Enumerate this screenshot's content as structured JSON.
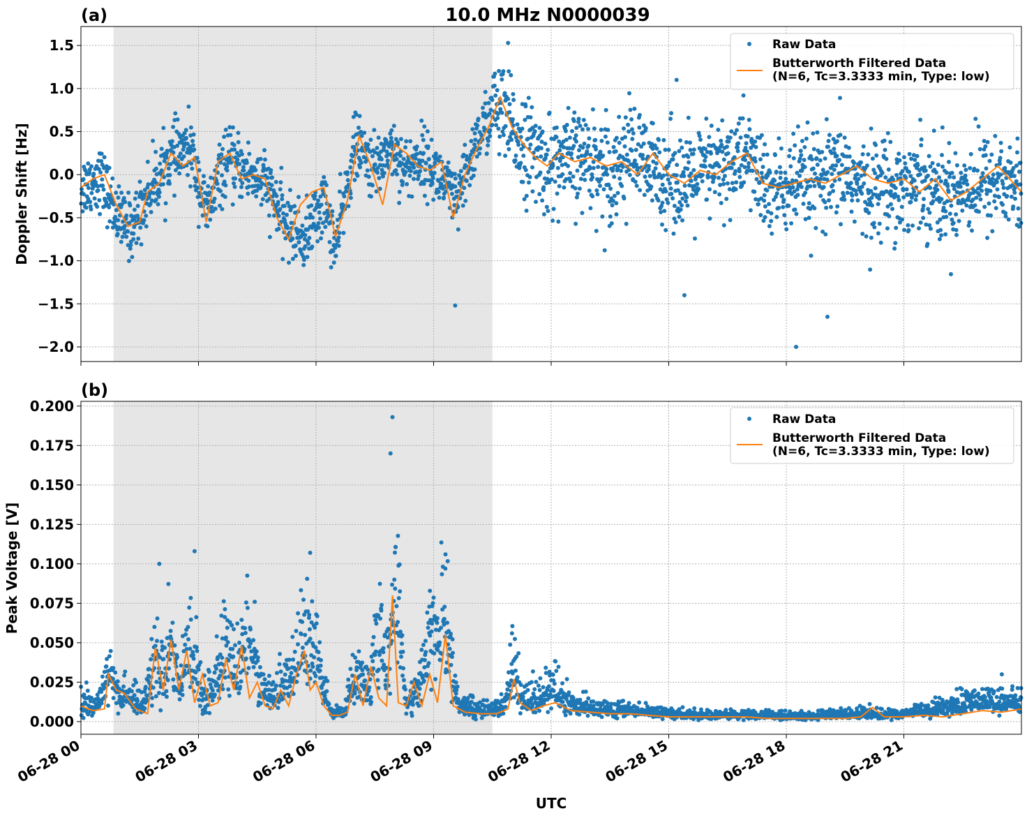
{
  "figure": {
    "title": "10.0 MHz N0000039"
  },
  "chart_data": [
    {
      "type": "scatter",
      "panel_label": "(a)",
      "title": "10.0 MHz N0000039",
      "ylabel": "Doppler Shift [Hz]",
      "xlabel": "",
      "xlim": [
        0,
        24
      ],
      "ylim": [
        -2.17,
        1.72
      ],
      "yticks": [
        1.5,
        1.0,
        0.5,
        0.0,
        -0.5,
        -1.0,
        -1.5,
        -2.0
      ],
      "ytick_labels": [
        "1.5",
        "1.0",
        "0.5",
        "0.0",
        "−0.5",
        "−1.0",
        "−1.5",
        "−2.0"
      ],
      "xticks": [
        0,
        3,
        6,
        9,
        12,
        15,
        18,
        21
      ],
      "shaded_region": [
        0.83,
        10.5
      ],
      "grid": true,
      "legend_position": "top-right",
      "series": [
        {
          "name": "Raw Data",
          "kind": "points",
          "color": "#1f77b4",
          "x": [
            0.0,
            0.5,
            1.0,
            1.3,
            1.8,
            2.3,
            2.8,
            3.2,
            3.7,
            4.2,
            4.7,
            5.2,
            5.7,
            6.2,
            6.5,
            7.0,
            7.5,
            7.9,
            8.3,
            8.7,
            9.2,
            9.6,
            10.1,
            10.6,
            11.0,
            11.4,
            11.9,
            12.5,
            13.0,
            13.5,
            14.0,
            14.5,
            15.0,
            15.5,
            16.0,
            16.5,
            17.0,
            17.5,
            18.0,
            18.5,
            19.0,
            19.5,
            20.0,
            20.5,
            21.0,
            21.5,
            22.0,
            22.5,
            23.0,
            23.5,
            24.0
          ],
          "y": [
            -0.15,
            -0.02,
            -0.55,
            -0.62,
            -0.15,
            0.2,
            0.3,
            -0.45,
            0.15,
            0.05,
            -0.1,
            -0.55,
            -0.75,
            -0.3,
            -0.85,
            0.35,
            0.05,
            0.35,
            0.05,
            0.2,
            -0.05,
            -0.35,
            0.4,
            0.8,
            0.5,
            0.3,
            0.1,
            0.15,
            0.2,
            0.0,
            0.3,
            0.05,
            0.0,
            -0.1,
            0.05,
            0.1,
            0.25,
            -0.2,
            -0.15,
            -0.1,
            -0.1,
            0.05,
            -0.2,
            -0.1,
            -0.15,
            -0.05,
            -0.25,
            -0.15,
            -0.1,
            -0.05,
            -0.2
          ],
          "outliers_x": [
            18.25,
            19.05,
            15.4,
            9.55,
            10.9,
            15.2,
            13.4
          ],
          "outliers_y": [
            -2.0,
            -1.65,
            -1.4,
            -1.52,
            1.53,
            1.1,
            0.75
          ]
        },
        {
          "name": "Butterworth Filtered Data\n(N=6, Tc=3.3333 min, Type: low)",
          "kind": "line",
          "color": "#ff7f0e",
          "x": [
            0.0,
            0.3,
            0.6,
            0.9,
            1.2,
            1.5,
            1.7,
            2.0,
            2.3,
            2.6,
            2.9,
            3.2,
            3.5,
            3.8,
            4.1,
            4.4,
            4.7,
            5.0,
            5.3,
            5.6,
            5.9,
            6.2,
            6.5,
            6.8,
            7.1,
            7.4,
            7.7,
            8.0,
            8.3,
            8.6,
            8.9,
            9.2,
            9.5,
            9.8,
            10.1,
            10.4,
            10.7,
            11.0,
            11.3,
            11.6,
            11.9,
            12.2,
            12.6,
            13.0,
            13.4,
            13.8,
            14.2,
            14.6,
            15.0,
            15.4,
            15.8,
            16.2,
            16.6,
            17.0,
            17.4,
            17.8,
            18.2,
            18.6,
            19.0,
            19.4,
            19.8,
            20.2,
            20.6,
            21.0,
            21.4,
            21.8,
            22.2,
            22.6,
            23.0,
            23.4,
            23.7,
            24.0
          ],
          "y": [
            -0.15,
            -0.05,
            0.0,
            -0.35,
            -0.6,
            -0.55,
            -0.2,
            -0.1,
            0.25,
            0.1,
            0.2,
            -0.55,
            0.15,
            0.25,
            -0.05,
            0.0,
            -0.05,
            -0.5,
            -0.75,
            -0.35,
            -0.2,
            -0.15,
            -0.72,
            -0.3,
            0.45,
            0.1,
            -0.35,
            0.35,
            0.25,
            0.1,
            0.05,
            0.15,
            -0.5,
            0.0,
            0.3,
            0.55,
            0.9,
            0.55,
            0.35,
            0.2,
            0.1,
            0.25,
            0.15,
            0.2,
            0.1,
            0.15,
            0.0,
            0.25,
            0.0,
            -0.1,
            0.05,
            0.0,
            0.15,
            0.25,
            -0.1,
            -0.15,
            -0.1,
            -0.05,
            -0.1,
            0.0,
            0.1,
            -0.05,
            -0.1,
            -0.05,
            -0.2,
            -0.05,
            -0.3,
            -0.2,
            -0.05,
            0.1,
            -0.05,
            -0.2
          ]
        }
      ]
    },
    {
      "type": "scatter",
      "panel_label": "(b)",
      "title": "",
      "ylabel": "Peak Voltage [V]",
      "xlabel": "UTC",
      "xlim": [
        0,
        24
      ],
      "ylim": [
        -0.008,
        0.203
      ],
      "yticks": [
        0.2,
        0.175,
        0.15,
        0.125,
        0.1,
        0.075,
        0.05,
        0.025,
        0.0
      ],
      "ytick_labels": [
        "0.200",
        "0.175",
        "0.150",
        "0.125",
        "0.100",
        "0.075",
        "0.050",
        "0.025",
        "0.000"
      ],
      "xticks": [
        0,
        3,
        6,
        9,
        12,
        15,
        18,
        21
      ],
      "xtick_labels": [
        "06-28 00",
        "06-28 03",
        "06-28 06",
        "06-28 09",
        "06-28 12",
        "06-28 15",
        "06-28 18",
        "06-28 21"
      ],
      "shaded_region": [
        0.83,
        10.5
      ],
      "grid": true,
      "legend_position": "top-right",
      "series": [
        {
          "name": "Raw Data",
          "kind": "points",
          "color": "#1f77b4",
          "x": [
            0.0,
            0.4,
            0.7,
            1.0,
            1.3,
            1.6,
            1.9,
            2.1,
            2.3,
            2.5,
            2.8,
            3.1,
            3.4,
            3.7,
            4.0,
            4.3,
            4.6,
            4.9,
            5.2,
            5.5,
            5.8,
            6.1,
            6.4,
            6.7,
            7.0,
            7.3,
            7.6,
            7.85,
            8.0,
            8.3,
            8.6,
            8.9,
            9.3,
            9.6,
            10.0,
            10.4,
            10.8,
            11.0,
            11.3,
            11.7,
            12.0,
            12.5,
            13.0,
            13.5,
            14.0,
            14.5,
            15.0,
            15.5,
            16.0,
            16.5,
            17.0,
            17.5,
            18.0,
            18.5,
            19.0,
            19.5,
            20.0,
            20.5,
            21.0,
            21.5,
            22.0,
            22.5,
            23.0,
            23.5,
            24.0
          ],
          "y": [
            0.012,
            0.01,
            0.03,
            0.015,
            0.012,
            0.01,
            0.04,
            0.025,
            0.055,
            0.02,
            0.05,
            0.015,
            0.02,
            0.045,
            0.03,
            0.055,
            0.02,
            0.015,
            0.02,
            0.03,
            0.06,
            0.025,
            0.005,
            0.005,
            0.03,
            0.02,
            0.05,
            0.03,
            0.09,
            0.01,
            0.02,
            0.045,
            0.06,
            0.01,
            0.008,
            0.007,
            0.01,
            0.03,
            0.012,
            0.015,
            0.02,
            0.01,
            0.008,
            0.007,
            0.006,
            0.006,
            0.005,
            0.004,
            0.004,
            0.004,
            0.004,
            0.004,
            0.003,
            0.003,
            0.004,
            0.004,
            0.005,
            0.004,
            0.005,
            0.006,
            0.008,
            0.01,
            0.012,
            0.012,
            0.012
          ],
          "outliers_x": [
            7.95,
            7.9,
            2.9,
            5.85,
            2.0,
            9.3,
            11.0,
            23.5
          ],
          "outliers_y": [
            0.193,
            0.17,
            0.108,
            0.107,
            0.1,
            0.097,
            0.056,
            0.03
          ]
        },
        {
          "name": "Butterworth Filtered Data\n(N=6, Tc=3.3333 min, Type: low)",
          "kind": "line",
          "color": "#ff7f0e",
          "x": [
            0.0,
            0.3,
            0.6,
            0.7,
            0.9,
            1.1,
            1.4,
            1.7,
            1.9,
            2.1,
            2.3,
            2.5,
            2.7,
            2.9,
            3.1,
            3.3,
            3.5,
            3.7,
            3.9,
            4.1,
            4.3,
            4.5,
            4.7,
            4.9,
            5.1,
            5.3,
            5.5,
            5.7,
            5.85,
            6.0,
            6.2,
            6.4,
            6.6,
            6.8,
            7.0,
            7.2,
            7.4,
            7.6,
            7.8,
            7.95,
            8.1,
            8.3,
            8.5,
            8.7,
            8.9,
            9.1,
            9.3,
            9.5,
            9.8,
            10.2,
            10.6,
            10.9,
            11.05,
            11.2,
            11.5,
            11.8,
            12.1,
            12.5,
            13.0,
            13.5,
            14.0,
            14.5,
            15.0,
            15.5,
            16.0,
            16.5,
            17.0,
            17.5,
            18.0,
            18.5,
            19.0,
            19.5,
            19.9,
            20.2,
            20.5,
            21.0,
            21.5,
            22.0,
            22.5,
            23.0,
            23.5,
            24.0
          ],
          "y": [
            0.01,
            0.007,
            0.008,
            0.03,
            0.02,
            0.018,
            0.008,
            0.005,
            0.047,
            0.02,
            0.052,
            0.02,
            0.045,
            0.012,
            0.03,
            0.01,
            0.012,
            0.04,
            0.02,
            0.048,
            0.015,
            0.025,
            0.01,
            0.008,
            0.02,
            0.01,
            0.03,
            0.045,
            0.02,
            0.025,
            0.01,
            0.004,
            0.004,
            0.006,
            0.03,
            0.01,
            0.035,
            0.015,
            0.01,
            0.08,
            0.012,
            0.01,
            0.025,
            0.01,
            0.03,
            0.012,
            0.055,
            0.01,
            0.006,
            0.005,
            0.005,
            0.008,
            0.027,
            0.012,
            0.007,
            0.01,
            0.012,
            0.007,
            0.006,
            0.005,
            0.005,
            0.004,
            0.003,
            0.003,
            0.003,
            0.003,
            0.003,
            0.002,
            0.002,
            0.002,
            0.002,
            0.002,
            0.003,
            0.009,
            0.003,
            0.003,
            0.004,
            0.003,
            0.005,
            0.007,
            0.006,
            0.008
          ]
        }
      ]
    }
  ]
}
